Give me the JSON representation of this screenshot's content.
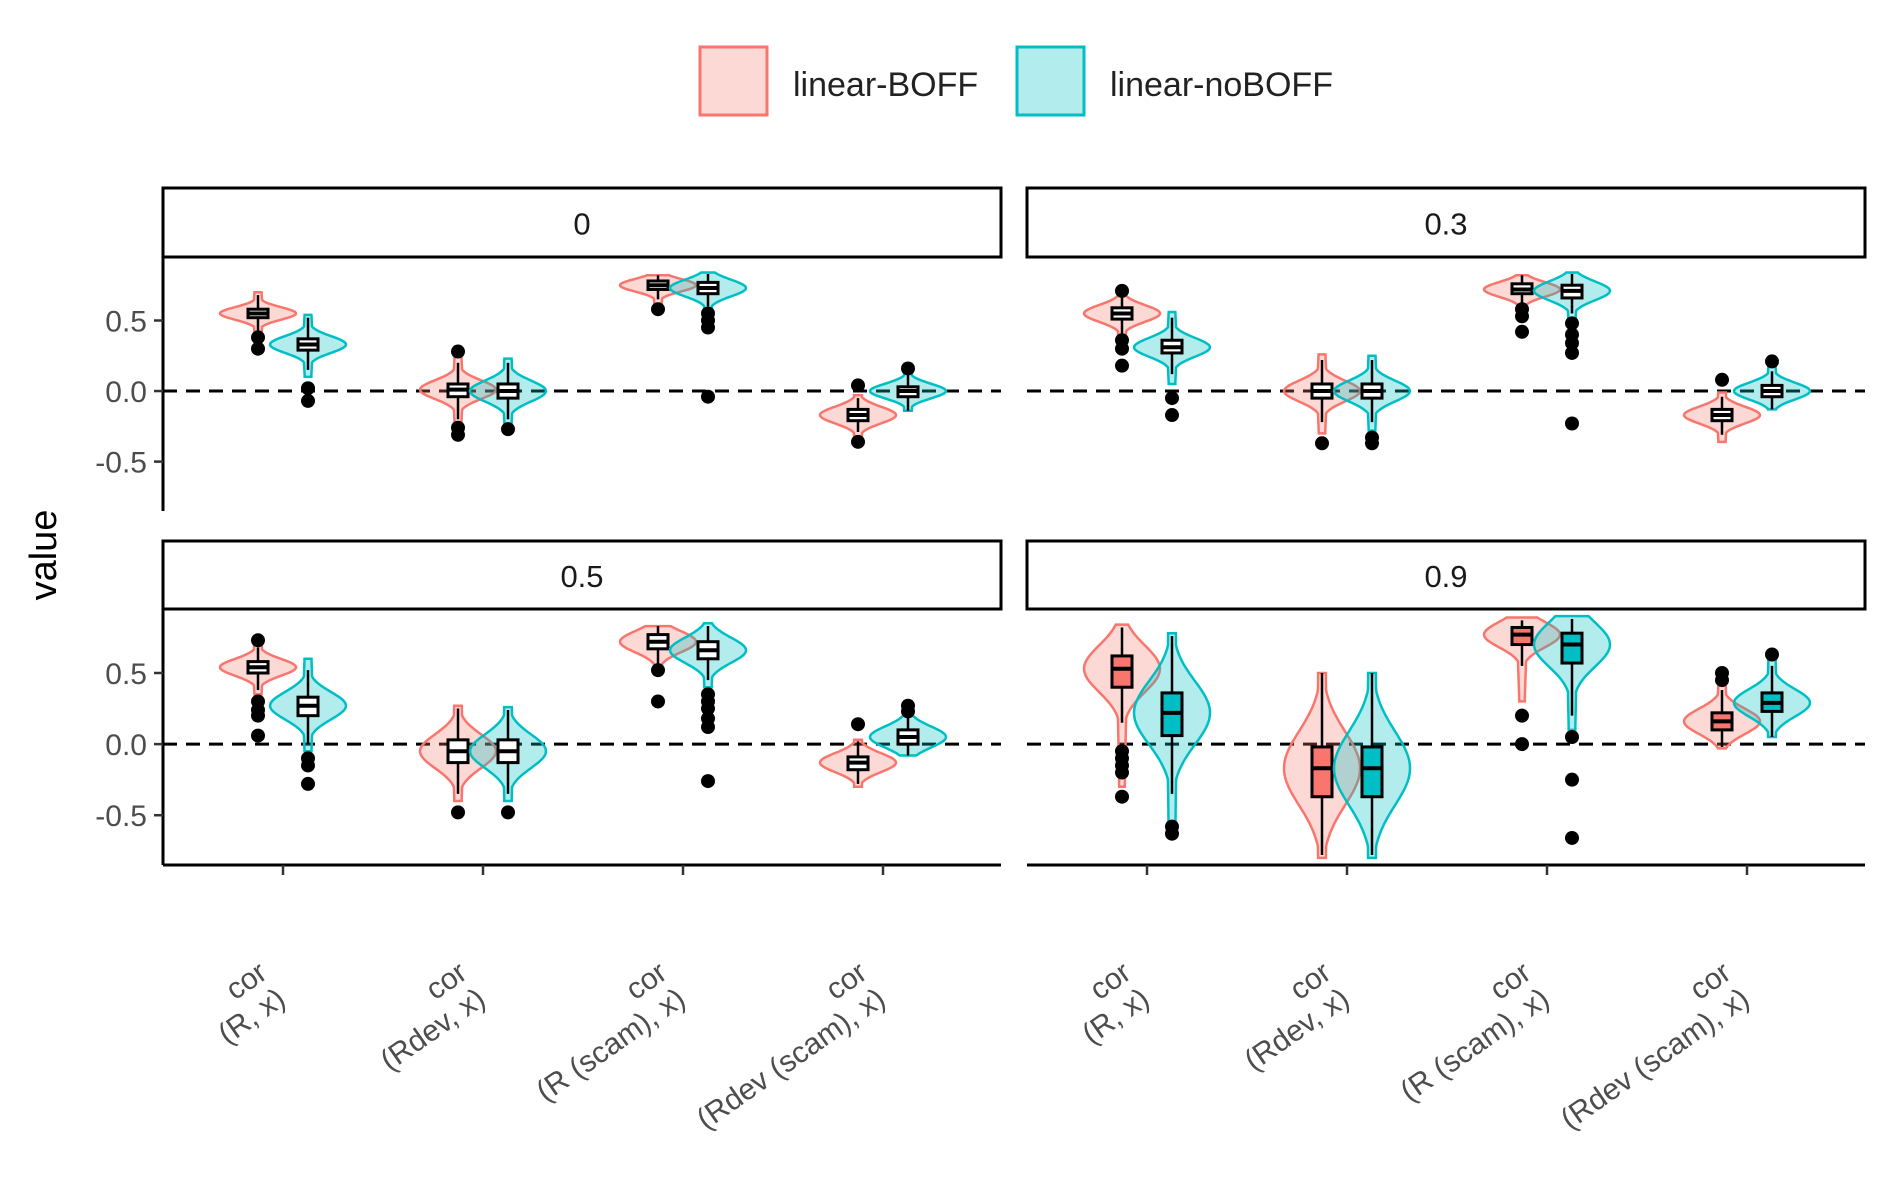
{
  "chart_data": {
    "type": "violin",
    "ylabel": "value",
    "xlabel": "",
    "ylim": [
      -0.85,
      0.95
    ],
    "y_ticks": [
      -0.5,
      0.0,
      0.5
    ],
    "y_tick_labels": [
      "-0.5",
      "0.0",
      "0.5"
    ],
    "reference_line": 0,
    "legend": {
      "position": "top",
      "entries": [
        {
          "name": "linear-BOFF",
          "color": "#F8766D"
        },
        {
          "name": "linear-noBOFF",
          "color": "#00BFC4"
        }
      ]
    },
    "categories": [
      {
        "line1": "cor",
        "line2": "(R, x)"
      },
      {
        "line1": "cor",
        "line2": "(Rdev, x)"
      },
      {
        "line1": "cor",
        "line2": "(R (scam), x)"
      },
      {
        "line1": "cor",
        "line2": "(Rdev (scam), x)"
      }
    ],
    "panels": [
      {
        "label": "0",
        "series": [
          {
            "name": "linear-BOFF",
            "groups": [
              {
                "median": 0.55,
                "q1": 0.52,
                "q3": 0.58,
                "min": 0.42,
                "max": 0.68,
                "vmin": 0.42,
                "vmax": 0.7,
                "outliers": [
                  0.38,
                  0.3
                ]
              },
              {
                "median": 0.01,
                "q1": -0.04,
                "q3": 0.05,
                "min": -0.2,
                "max": 0.2,
                "vmin": -0.25,
                "vmax": 0.25,
                "outliers": [
                  0.28,
                  -0.26,
                  -0.31
                ]
              },
              {
                "median": 0.75,
                "q1": 0.72,
                "q3": 0.78,
                "min": 0.65,
                "max": 0.82,
                "vmin": 0.62,
                "vmax": 0.82,
                "outliers": [
                  0.58
                ]
              },
              {
                "median": -0.17,
                "q1": -0.21,
                "q3": -0.13,
                "min": -0.29,
                "max": -0.05,
                "vmin": -0.33,
                "vmax": -0.03,
                "outliers": [
                  0.04,
                  -0.36
                ]
              }
            ]
          },
          {
            "name": "linear-noBOFF",
            "groups": [
              {
                "median": 0.33,
                "q1": 0.29,
                "q3": 0.37,
                "min": 0.15,
                "max": 0.52,
                "vmin": 0.1,
                "vmax": 0.54,
                "outliers": [
                  0.02,
                  -0.07
                ]
              },
              {
                "median": 0.0,
                "q1": -0.05,
                "q3": 0.05,
                "min": -0.2,
                "max": 0.2,
                "vmin": -0.24,
                "vmax": 0.23,
                "outliers": [
                  -0.27
                ]
              },
              {
                "median": 0.73,
                "q1": 0.69,
                "q3": 0.77,
                "min": 0.6,
                "max": 0.83,
                "vmin": 0.55,
                "vmax": 0.84,
                "outliers": [
                  0.55,
                  0.5,
                  0.45,
                  -0.04
                ]
              },
              {
                "median": 0.0,
                "q1": -0.04,
                "q3": 0.03,
                "min": -0.14,
                "max": 0.12,
                "vmin": -0.14,
                "vmax": 0.17,
                "outliers": [
                  0.16
                ]
              }
            ]
          }
        ]
      },
      {
        "label": "0.3",
        "series": [
          {
            "name": "linear-BOFF",
            "groups": [
              {
                "median": 0.55,
                "q1": 0.51,
                "q3": 0.59,
                "min": 0.4,
                "max": 0.68,
                "vmin": 0.36,
                "vmax": 0.71,
                "outliers": [
                  0.71,
                  0.36,
                  0.3,
                  0.18
                ]
              },
              {
                "median": 0.0,
                "q1": -0.05,
                "q3": 0.05,
                "min": -0.22,
                "max": 0.22,
                "vmin": -0.3,
                "vmax": 0.26,
                "outliers": [
                  -0.37
                ]
              },
              {
                "median": 0.72,
                "q1": 0.69,
                "q3": 0.76,
                "min": 0.62,
                "max": 0.82,
                "vmin": 0.58,
                "vmax": 0.82,
                "outliers": [
                  0.58,
                  0.53,
                  0.42
                ]
              },
              {
                "median": -0.17,
                "q1": -0.21,
                "q3": -0.13,
                "min": -0.31,
                "max": -0.04,
                "vmin": -0.36,
                "vmax": -0.01,
                "outliers": [
                  0.08
                ]
              }
            ]
          },
          {
            "name": "linear-noBOFF",
            "groups": [
              {
                "median": 0.31,
                "q1": 0.27,
                "q3": 0.36,
                "min": 0.12,
                "max": 0.52,
                "vmin": 0.05,
                "vmax": 0.56,
                "outliers": [
                  -0.05,
                  -0.17
                ]
              },
              {
                "median": 0.0,
                "q1": -0.05,
                "q3": 0.05,
                "min": -0.22,
                "max": 0.22,
                "vmin": -0.28,
                "vmax": 0.25,
                "outliers": [
                  -0.33,
                  -0.37
                ]
              },
              {
                "median": 0.71,
                "q1": 0.66,
                "q3": 0.75,
                "min": 0.55,
                "max": 0.83,
                "vmin": 0.5,
                "vmax": 0.84,
                "outliers": [
                  0.48,
                  0.4,
                  0.34,
                  0.27,
                  -0.23
                ]
              },
              {
                "median": 0.0,
                "q1": -0.04,
                "q3": 0.04,
                "min": -0.13,
                "max": 0.14,
                "vmin": -0.13,
                "vmax": 0.18,
                "outliers": [
                  0.21
                ]
              }
            ]
          }
        ]
      },
      {
        "label": "0.5",
        "series": [
          {
            "name": "linear-BOFF",
            "groups": [
              {
                "median": 0.54,
                "q1": 0.5,
                "q3": 0.58,
                "min": 0.38,
                "max": 0.68,
                "vmin": 0.35,
                "vmax": 0.72,
                "outliers": [
                  0.73,
                  0.3,
                  0.24,
                  0.2,
                  0.06
                ]
              },
              {
                "median": -0.05,
                "q1": -0.13,
                "q3": 0.03,
                "min": -0.35,
                "max": 0.25,
                "vmin": -0.4,
                "vmax": 0.27,
                "outliers": [
                  -0.48
                ]
              },
              {
                "median": 0.72,
                "q1": 0.67,
                "q3": 0.77,
                "min": 0.55,
                "max": 0.83,
                "vmin": 0.5,
                "vmax": 0.83,
                "outliers": [
                  0.52,
                  0.3
                ]
              },
              {
                "median": -0.13,
                "q1": -0.18,
                "q3": -0.09,
                "min": -0.28,
                "max": 0.02,
                "vmin": -0.3,
                "vmax": 0.03,
                "outliers": [
                  0.14
                ]
              }
            ]
          },
          {
            "name": "linear-noBOFF",
            "groups": [
              {
                "median": 0.27,
                "q1": 0.2,
                "q3": 0.33,
                "min": 0.0,
                "max": 0.52,
                "vmin": -0.05,
                "vmax": 0.6,
                "outliers": [
                  -0.1,
                  -0.15,
                  -0.28
                ]
              },
              {
                "median": -0.05,
                "q1": -0.13,
                "q3": 0.03,
                "min": -0.35,
                "max": 0.24,
                "vmin": -0.4,
                "vmax": 0.26,
                "outliers": [
                  -0.48
                ]
              },
              {
                "median": 0.66,
                "q1": 0.6,
                "q3": 0.72,
                "min": 0.45,
                "max": 0.83,
                "vmin": 0.4,
                "vmax": 0.85,
                "outliers": [
                  0.35,
                  0.3,
                  0.25,
                  0.18,
                  0.12,
                  -0.26
                ]
              },
              {
                "median": 0.05,
                "q1": 0.0,
                "q3": 0.1,
                "min": -0.08,
                "max": 0.22,
                "vmin": -0.08,
                "vmax": 0.3,
                "outliers": [
                  0.27,
                  0.23
                ]
              }
            ]
          }
        ]
      },
      {
        "label": "0.9",
        "series": [
          {
            "name": "linear-BOFF",
            "groups": [
              {
                "median": 0.53,
                "q1": 0.4,
                "q3": 0.62,
                "min": 0.15,
                "max": 0.82,
                "vmin": -0.3,
                "vmax": 0.84,
                "outliers": [
                  -0.05,
                  -0.1,
                  -0.15,
                  -0.2,
                  -0.37
                ]
              },
              {
                "median": -0.17,
                "q1": -0.37,
                "q3": -0.02,
                "min": -0.78,
                "max": 0.5,
                "vmin": -0.8,
                "vmax": 0.5,
                "outliers": []
              },
              {
                "median": 0.77,
                "q1": 0.7,
                "q3": 0.82,
                "min": 0.55,
                "max": 0.87,
                "vmin": 0.3,
                "vmax": 0.89,
                "outliers": [
                  0.2,
                  0.0
                ]
              },
              {
                "median": 0.16,
                "q1": 0.1,
                "q3": 0.22,
                "min": -0.02,
                "max": 0.38,
                "vmin": -0.03,
                "vmax": 0.5,
                "outliers": [
                  0.5,
                  0.45
                ]
              }
            ]
          },
          {
            "name": "linear-noBOFF",
            "groups": [
              {
                "median": 0.22,
                "q1": 0.06,
                "q3": 0.36,
                "min": -0.35,
                "max": 0.76,
                "vmin": -0.55,
                "vmax": 0.78,
                "outliers": [
                  -0.58,
                  -0.63
                ]
              },
              {
                "median": -0.17,
                "q1": -0.37,
                "q3": -0.02,
                "min": -0.78,
                "max": 0.5,
                "vmin": -0.8,
                "vmax": 0.5,
                "outliers": []
              },
              {
                "median": 0.7,
                "q1": 0.57,
                "q3": 0.78,
                "min": 0.2,
                "max": 0.88,
                "vmin": 0.1,
                "vmax": 0.9,
                "outliers": [
                  0.05,
                  -0.25,
                  -0.66
                ]
              },
              {
                "median": 0.29,
                "q1": 0.23,
                "q3": 0.36,
                "min": 0.05,
                "max": 0.55,
                "vmin": 0.05,
                "vmax": 0.64,
                "outliers": [
                  0.63
                ]
              }
            ]
          }
        ]
      }
    ]
  }
}
